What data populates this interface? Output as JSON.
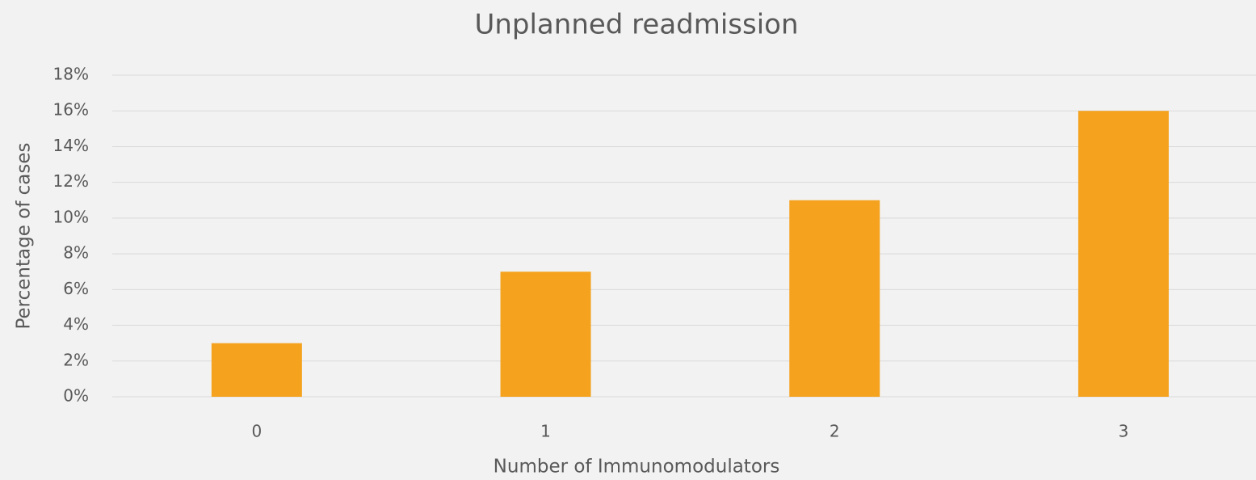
{
  "chart_data": {
    "type": "bar",
    "title": "Unplanned readmission",
    "x_label": "Number of Immunomodulators",
    "y_label": "Percentage of cases",
    "categories": [
      "0",
      "1",
      "2",
      "3"
    ],
    "values": [
      3,
      7,
      11,
      16
    ],
    "color": "#f5a31f",
    "ylim": [
      0,
      18
    ],
    "yticks": [
      {
        "value": 0,
        "label": "0%"
      },
      {
        "value": 2,
        "label": "2%"
      },
      {
        "value": 4,
        "label": "4%"
      },
      {
        "value": 6,
        "label": "6%"
      },
      {
        "value": 8,
        "label": "8%"
      },
      {
        "value": 10,
        "label": "10%"
      },
      {
        "value": 12,
        "label": "12%"
      },
      {
        "value": 14,
        "label": "14%"
      },
      {
        "value": 16,
        "label": "16%"
      },
      {
        "value": 18,
        "label": "18%"
      }
    ],
    "grid": true
  }
}
